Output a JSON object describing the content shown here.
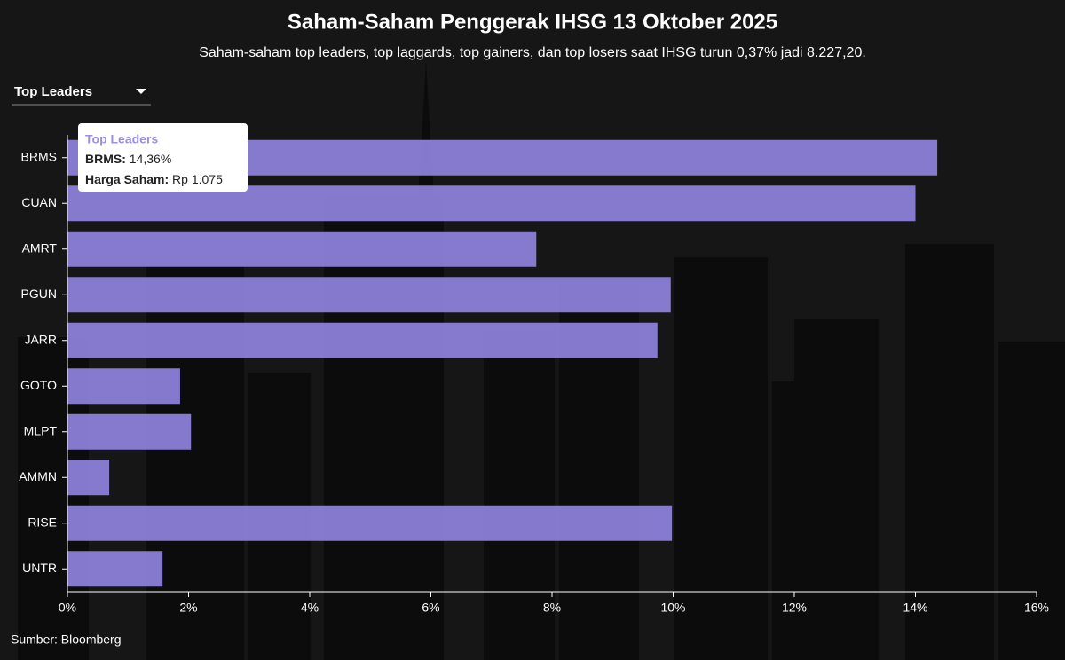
{
  "chart_data": {
    "type": "bar",
    "orientation": "horizontal",
    "title": "Saham-Saham Penggerak IHSG 13 Oktober 2025",
    "subtitle": "Saham-saham top leaders, top laggards, top gainers, dan top losers saat IHSG turun 0,37% jadi 8.227,20.",
    "dropdown": "Top Leaders",
    "categories": [
      "BRMS",
      "CUAN",
      "AMRT",
      "PGUN",
      "JARR",
      "GOTO",
      "MLPT",
      "AMMN",
      "RISE",
      "UNTR"
    ],
    "values": [
      14.36,
      14.0,
      7.74,
      9.96,
      9.74,
      1.86,
      2.04,
      0.69,
      9.98,
      1.57
    ],
    "color": "#8b7fd8",
    "xlim": [
      0,
      16
    ],
    "xticks": [
      {
        "value": 0,
        "label": "0%"
      },
      {
        "value": 2,
        "label": "2%"
      },
      {
        "value": 4,
        "label": "4%"
      },
      {
        "value": 6,
        "label": "6%"
      },
      {
        "value": 8,
        "label": "8%"
      },
      {
        "value": 10,
        "label": "10%"
      },
      {
        "value": 12,
        "label": "12%"
      },
      {
        "value": 14,
        "label": "14%"
      },
      {
        "value": 16,
        "label": "16%"
      }
    ],
    "grid": false,
    "tooltip": {
      "title": "Top Leaders",
      "label": "BRMS:",
      "value": "14,36%",
      "price_label": "Harga Saham:",
      "price": "Rp 1.075"
    },
    "source": "Sumber: Bloomberg"
  }
}
